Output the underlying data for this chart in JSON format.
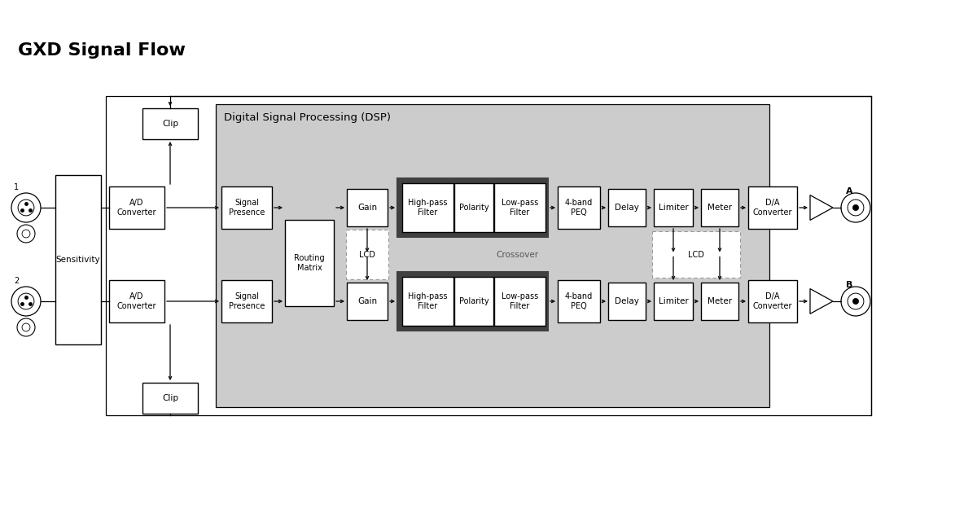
{
  "title": "GXD Signal Flow",
  "bg_color": "#ffffff",
  "dsp_bg_color": "#cccccc",
  "dsp_title": "Digital Signal Processing (DSP)",
  "crossover_label": "Crossover",
  "lcd_label": "LCD",
  "sensitivity_label": "Sensitivity",
  "clip_label": "Clip",
  "output_a": "A",
  "output_b": "B"
}
